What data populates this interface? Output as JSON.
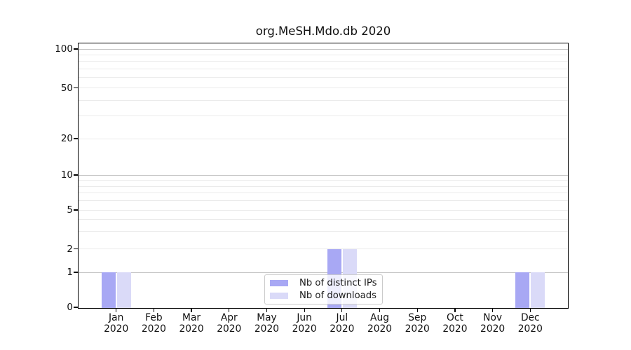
{
  "title": "org.MeSH.Mdo.db 2020",
  "chart_data": {
    "type": "bar",
    "title": "org.MeSH.Mdo.db 2020",
    "x_tick_labels_line1": [
      "Jan",
      "Feb",
      "Mar",
      "Apr",
      "May",
      "Jun",
      "Jul",
      "Aug",
      "Sep",
      "Oct",
      "Nov",
      "Dec"
    ],
    "x_tick_labels_line2": [
      "2020",
      "2020",
      "2020",
      "2020",
      "2020",
      "2020",
      "2020",
      "2020",
      "2020",
      "2020",
      "2020",
      "2020"
    ],
    "categories": [
      "Jan 2020",
      "Feb 2020",
      "Mar 2020",
      "Apr 2020",
      "May 2020",
      "Jun 2020",
      "Jul 2020",
      "Aug 2020",
      "Sep 2020",
      "Oct 2020",
      "Nov 2020",
      "Dec 2020"
    ],
    "series": [
      {
        "name": "Nb of distinct IPs",
        "color": "#a8a8f4",
        "values": [
          1,
          0,
          0,
          0,
          0,
          0,
          2,
          0,
          0,
          0,
          0,
          1
        ]
      },
      {
        "name": "Nb of downloads",
        "color": "#dadaf8",
        "values": [
          1,
          0,
          0,
          0,
          0,
          0,
          2,
          0,
          0,
          0,
          0,
          1
        ]
      }
    ],
    "y_ticks": [
      0,
      1,
      2,
      5,
      10,
      20,
      50,
      100
    ],
    "y_scale": "log-like (compressed toward 0, baseline 0 shown)",
    "ylim": [
      0,
      110
    ],
    "grid": "horizontal, log minor lines on",
    "legend_position": "inside bottom center",
    "grid_major_values": [
      1,
      10,
      100
    ],
    "grid_minor_values": [
      2,
      3,
      4,
      5,
      6,
      7,
      8,
      9,
      20,
      30,
      40,
      50,
      60,
      70,
      80,
      90
    ]
  }
}
